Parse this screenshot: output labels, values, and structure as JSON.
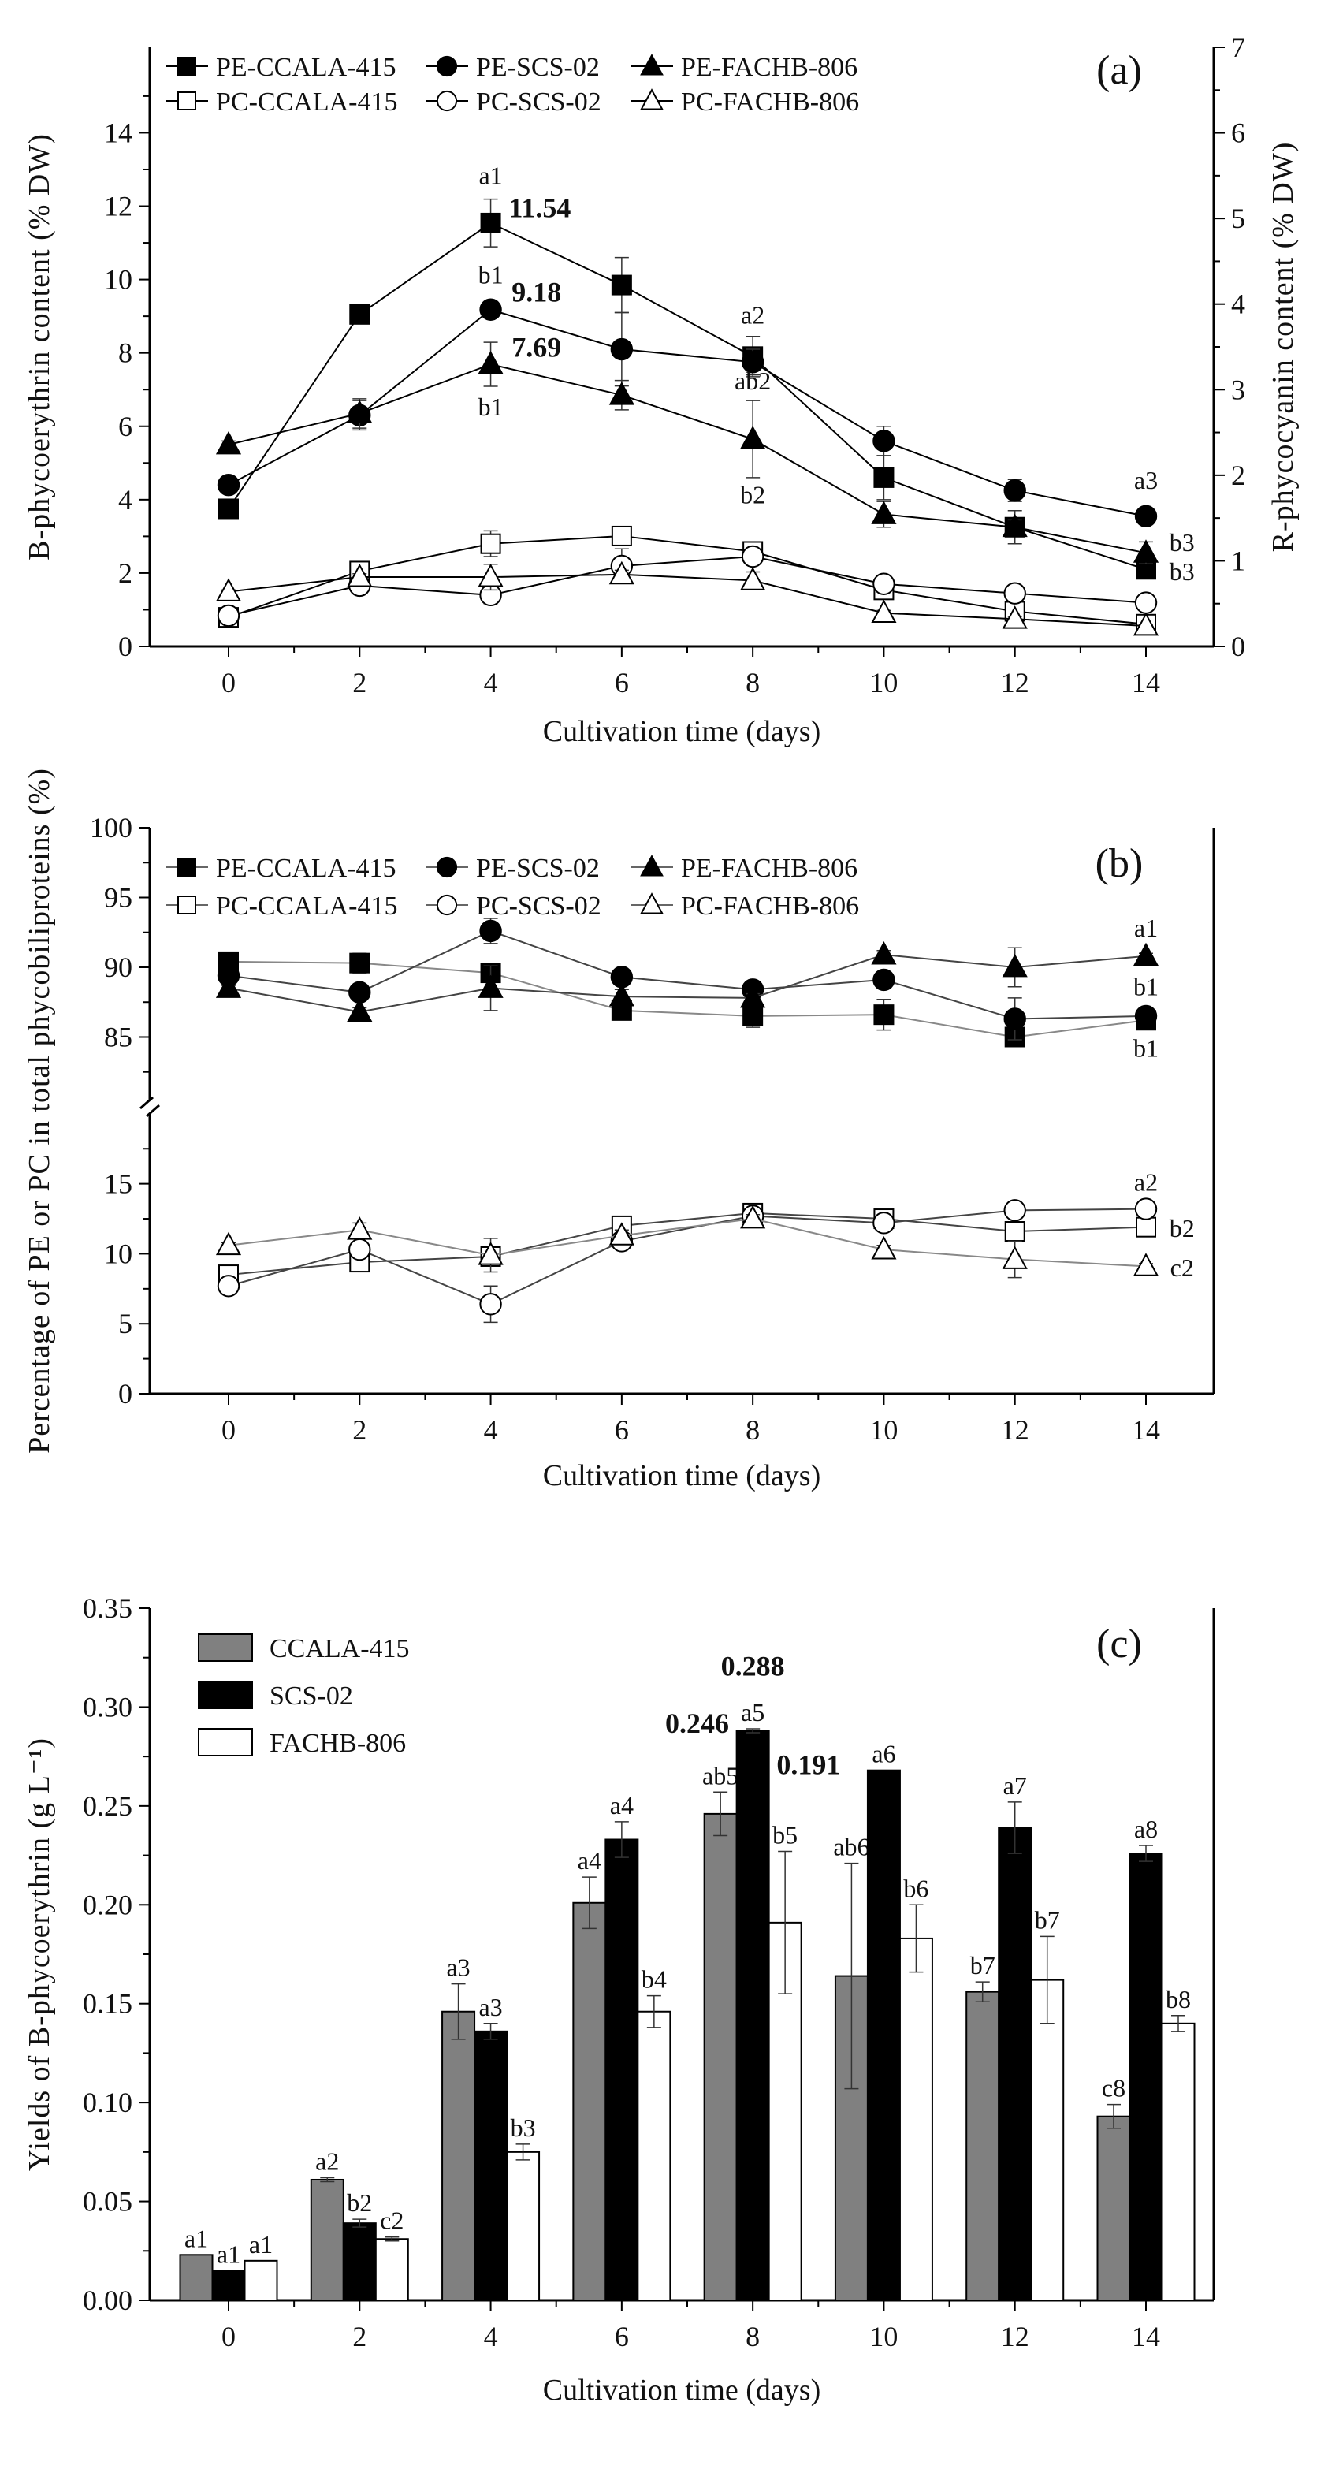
{
  "chart_data": [
    {
      "id": "a",
      "type": "line",
      "panel_label": "(a)",
      "xlabel": "Cultivation time (days)",
      "ylabel": "B-phycoerythrin content (% DW)",
      "ylabel_right": "R-phycocyanin content (% DW)",
      "x": [
        0,
        2,
        4,
        6,
        8,
        10,
        12,
        14
      ],
      "xticks": [
        "0",
        "2",
        "4",
        "6",
        "8",
        "10",
        "12",
        "14"
      ],
      "ylim": [
        0,
        16.33
      ],
      "yticks": [
        "0",
        "2",
        "4",
        "6",
        "8",
        "10",
        "12",
        "14"
      ],
      "ylim_right": [
        0,
        7
      ],
      "yticks_right": [
        "0",
        "1",
        "2",
        "3",
        "4",
        "5",
        "6",
        "7"
      ],
      "legend_placement": "top-left",
      "series": [
        {
          "name": "PE-CCALA-415",
          "axis": "left",
          "marker": "square",
          "filled": true,
          "values": [
            3.75,
            9.05,
            11.54,
            9.85,
            7.9,
            4.6,
            3.25,
            2.1
          ],
          "err": [
            0.1,
            0.2,
            0.65,
            0.75,
            0.55,
            0.6,
            0.45,
            0.1
          ]
        },
        {
          "name": "PE-SCS-02",
          "axis": "left",
          "marker": "circle",
          "filled": true,
          "values": [
            4.4,
            6.3,
            9.18,
            8.1,
            7.75,
            5.6,
            4.25,
            3.55
          ],
          "err": [
            0.1,
            0.4,
            0.1,
            1.0,
            0.35,
            0.4,
            0.3,
            0.1
          ]
        },
        {
          "name": "PE-FACHB-806",
          "axis": "left",
          "marker": "triangle",
          "filled": true,
          "values": [
            5.5,
            6.35,
            7.69,
            6.85,
            5.65,
            3.6,
            3.25,
            2.55
          ],
          "err": [
            0.1,
            0.4,
            0.6,
            0.4,
            1.05,
            0.35,
            0.2,
            0.3
          ]
        },
        {
          "name": "PC-CCALA-415",
          "axis": "right",
          "marker": "square",
          "filled": false,
          "values": [
            0.34,
            0.88,
            1.2,
            1.29,
            1.11,
            0.66,
            0.41,
            0.26
          ],
          "err": [
            0.02,
            0.05,
            0.15,
            0.04,
            0.05,
            0.05,
            0.05,
            0.03
          ]
        },
        {
          "name": "PC-SCS-02",
          "axis": "right",
          "marker": "circle",
          "filled": false,
          "values": [
            0.36,
            0.71,
            0.6,
            0.94,
            1.05,
            0.73,
            0.62,
            0.51
          ],
          "err": [
            0.03,
            0.04,
            0.1,
            0.2,
            0.05,
            0.05,
            0.04,
            0.03
          ]
        },
        {
          "name": "PC-FACHB-806",
          "axis": "right",
          "marker": "triangle",
          "filled": false,
          "values": [
            0.64,
            0.81,
            0.81,
            0.84,
            0.77,
            0.39,
            0.32,
            0.24
          ],
          "err": [
            0.02,
            0.04,
            0.15,
            0.05,
            0.1,
            0.03,
            0.03,
            0.02
          ]
        }
      ],
      "annotations": [
        {
          "x": 4,
          "y": 12.6,
          "text": "a1",
          "bold": false
        },
        {
          "x": 4.75,
          "y": 11.7,
          "text": "11.54",
          "bold": true
        },
        {
          "x": 4,
          "y": 9.9,
          "text": "b1",
          "bold": false
        },
        {
          "x": 4.7,
          "y": 9.4,
          "text": "9.18",
          "bold": true
        },
        {
          "x": 4.7,
          "y": 7.9,
          "text": "7.69",
          "bold": true
        },
        {
          "x": 4,
          "y": 6.3,
          "text": "b1",
          "bold": false
        },
        {
          "x": 8,
          "y": 8.8,
          "text": "a2",
          "bold": false
        },
        {
          "x": 8,
          "y": 7.0,
          "text": "ab2",
          "bold": false
        },
        {
          "x": 8,
          "y": 3.9,
          "text": "b2",
          "bold": false
        },
        {
          "x": 14,
          "y": 4.3,
          "text": "a3",
          "bold": false
        },
        {
          "x": 14.55,
          "y": 2.6,
          "text": "b3",
          "bold": false
        },
        {
          "x": 14.55,
          "y": 1.8,
          "text": "b3",
          "bold": false
        }
      ]
    },
    {
      "id": "b",
      "type": "line",
      "panel_label": "(b)",
      "xlabel": "Cultivation time (days)",
      "ylabel": "Percentage of PE or PC in total phycobiliproteins (%)",
      "x": [
        0,
        2,
        4,
        6,
        8,
        10,
        12,
        14
      ],
      "xticks": [
        "0",
        "2",
        "4",
        "6",
        "8",
        "10",
        "12",
        "14"
      ],
      "ylim": [
        0,
        100
      ],
      "axis_break": [
        20.5,
        80
      ],
      "yticks": [
        "0",
        "5",
        "10",
        "15",
        "85",
        "90",
        "95",
        "100"
      ],
      "legend_placement": "top-left",
      "series": [
        {
          "name": "PE-CCALA-415",
          "marker": "square",
          "filled": true,
          "values": [
            90.4,
            90.3,
            89.6,
            86.9,
            86.5,
            86.6,
            85.0,
            86.2
          ],
          "err": [
            0.3,
            0.7,
            0.6,
            0.3,
            0.8,
            1.1,
            0.4,
            0.2
          ]
        },
        {
          "name": "PE-SCS-02",
          "marker": "circle",
          "filled": true,
          "values": [
            89.4,
            88.2,
            92.6,
            89.3,
            88.4,
            89.1,
            86.3,
            86.5
          ],
          "err": [
            0.3,
            0.5,
            0.9,
            0.3,
            0.2,
            0.4,
            1.5,
            0.2
          ]
        },
        {
          "name": "PE-FACHB-806",
          "marker": "triangle",
          "filled": true,
          "values": [
            88.5,
            86.8,
            88.5,
            87.9,
            87.8,
            90.9,
            90.0,
            90.8
          ],
          "err": [
            0.2,
            0.3,
            1.6,
            0.5,
            0.3,
            0.3,
            1.4,
            0.2
          ]
        },
        {
          "name": "PC-CCALA-415",
          "marker": "square",
          "filled": false,
          "values": [
            8.5,
            9.4,
            9.8,
            12.0,
            12.9,
            12.5,
            11.6,
            11.9
          ],
          "err": [
            0.3,
            0.5,
            0.6,
            0.4,
            0.2,
            0.5,
            0.4,
            0.3
          ]
        },
        {
          "name": "PC-SCS-02",
          "marker": "circle",
          "filled": false,
          "values": [
            7.7,
            10.3,
            6.4,
            10.9,
            12.7,
            12.2,
            13.1,
            13.2
          ],
          "err": [
            0.3,
            0.4,
            1.3,
            0.3,
            0.3,
            0.4,
            0.2,
            0.2
          ]
        },
        {
          "name": "PC-FACHB-806",
          "marker": "triangle",
          "filled": false,
          "values": [
            10.6,
            11.7,
            9.9,
            11.3,
            12.5,
            10.3,
            9.6,
            9.1
          ],
          "err": [
            0.2,
            0.5,
            1.2,
            0.4,
            0.3,
            0.3,
            1.3,
            0.2
          ]
        }
      ],
      "annotations": [
        {
          "x": 14,
          "y": 92.2,
          "text": "a1",
          "bold": false
        },
        {
          "x": 14,
          "y": 88.0,
          "text": "b1",
          "bold": false
        },
        {
          "x": 14,
          "y": 83.6,
          "text": "b1",
          "bold": false
        },
        {
          "x": 14,
          "y": 14.5,
          "text": "a2",
          "bold": false
        },
        {
          "x": 14.55,
          "y": 11.2,
          "text": "b2",
          "bold": false
        },
        {
          "x": 14.55,
          "y": 8.4,
          "text": "c2",
          "bold": false
        }
      ]
    },
    {
      "id": "c",
      "type": "bar",
      "panel_label": "(c)",
      "xlabel": "Cultivation time (days)",
      "ylabel": "Yields of B-phycoerythrin (g L⁻¹)",
      "categories": [
        "0",
        "2",
        "4",
        "6",
        "8",
        "10",
        "12",
        "14"
      ],
      "ylim": [
        0,
        0.35
      ],
      "yticks": [
        "0.00",
        "0.05",
        "0.10",
        "0.15",
        "0.20",
        "0.25",
        "0.30",
        "0.35"
      ],
      "legend_placement": "top-left",
      "series": [
        {
          "name": "CCALA-415",
          "color": "#808080",
          "values": [
            0.023,
            0.061,
            0.146,
            0.201,
            0.246,
            0.164,
            0.156,
            0.093
          ],
          "err": [
            0.0,
            0.001,
            0.014,
            0.013,
            0.011,
            0.057,
            0.005,
            0.006
          ],
          "letters": [
            "a1",
            "a2",
            "a3",
            "a4",
            "ab5",
            "ab6",
            "b7",
            "c8"
          ]
        },
        {
          "name": "SCS-02",
          "color": "#000000",
          "values": [
            0.015,
            0.039,
            0.136,
            0.233,
            0.288,
            0.268,
            0.239,
            0.226
          ],
          "err": [
            0.0,
            0.002,
            0.004,
            0.009,
            0.001,
            0.0,
            0.013,
            0.004
          ],
          "letters": [
            "a1",
            "b2",
            "a3",
            "a4",
            "a5",
            "a6",
            "a7",
            "a8"
          ]
        },
        {
          "name": "FACHB-806",
          "color": "#ffffff",
          "values": [
            0.02,
            0.031,
            0.075,
            0.146,
            0.191,
            0.183,
            0.162,
            0.14
          ],
          "err": [
            0.0,
            0.001,
            0.004,
            0.008,
            0.036,
            0.017,
            0.022,
            0.004
          ],
          "letters": [
            "a1",
            "c2",
            "b3",
            "b4",
            "b5",
            "b6",
            "b7",
            "b8"
          ]
        }
      ],
      "annotations": [
        {
          "x": 8,
          "y": 0.316,
          "text": "0.288",
          "bold": true
        },
        {
          "x": 7.15,
          "y": 0.287,
          "text": "0.246",
          "bold": true
        },
        {
          "x": 8.85,
          "y": 0.266,
          "text": "0.191",
          "bold": true
        }
      ]
    }
  ]
}
